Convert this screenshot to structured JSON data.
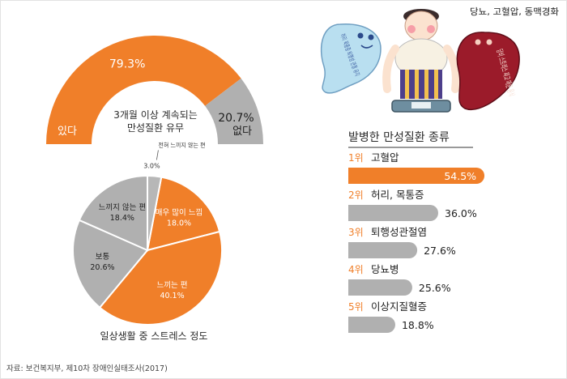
{
  "source": "자료: 보건복지부, 제10차 장애인실태조사(2017)",
  "illustration": {
    "note": "당뇨, 고혈압, 동맥경화",
    "ghost_blue_text": "허리 목통증 퇴행성 관절 유지",
    "ghost_red_text": "당비 스트레스 짜고 매운 음식"
  },
  "colors": {
    "orange": "#f07f29",
    "gray": "#b0b0b0",
    "dark": "#2a2a2a",
    "white": "#ffffff"
  },
  "chart_data": [
    {
      "type": "donut",
      "title": "3개월 이상 계속되는\n만성질환 유무",
      "categories": [
        "있다",
        "없다"
      ],
      "values": [
        79.3,
        20.7
      ],
      "value_labels": [
        "79.3%",
        "20.7%"
      ],
      "colors": [
        "#f07f29",
        "#b0b0b0"
      ]
    },
    {
      "type": "pie",
      "title": "일상생활 중 스트레스 정도",
      "categories": [
        "매우 많이 느낌",
        "느끼는 편",
        "보통",
        "느끼지 않는 편",
        "전혀 느끼지 않는 편"
      ],
      "values": [
        18.0,
        40.1,
        20.6,
        18.4,
        3.0
      ],
      "value_labels": [
        "18.0%",
        "40.1%",
        "20.6%",
        "18.4%",
        "3.0%"
      ],
      "colors": [
        "#f07f29",
        "#f07f29",
        "#b0b0b0",
        "#b0b0b0",
        "#b0b0b0"
      ]
    },
    {
      "type": "bar",
      "title": "발병한 만성질환 종류",
      "ranks": [
        "1위",
        "2위",
        "3위",
        "4위",
        "5위"
      ],
      "categories": [
        "고혈압",
        "허리, 목통증",
        "퇴행성관절염",
        "당뇨병",
        "이상지질혈증"
      ],
      "values": [
        54.5,
        36.0,
        27.6,
        25.6,
        18.8
      ],
      "value_labels": [
        "54.5%",
        "36.0%",
        "27.6%",
        "25.6%",
        "18.8%"
      ],
      "colors": [
        "#f07f29",
        "#b0b0b0",
        "#b0b0b0",
        "#b0b0b0",
        "#b0b0b0"
      ],
      "xlim": [
        0,
        60
      ]
    }
  ]
}
